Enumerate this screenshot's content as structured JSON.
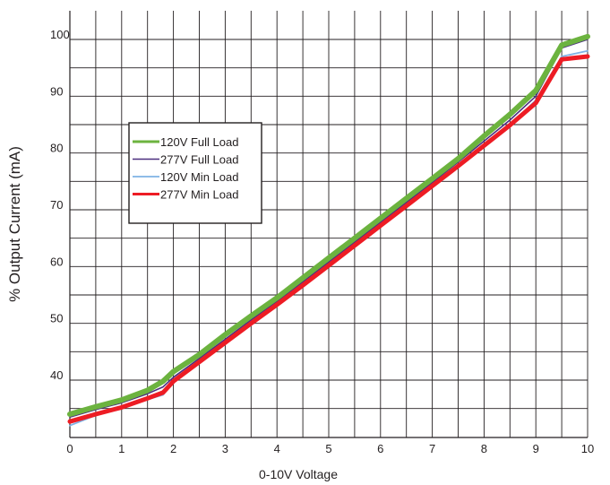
{
  "chart_data": {
    "type": "line",
    "title": "",
    "xlabel": "0-10V Voltage",
    "ylabel": "% Output Current (mA)",
    "xlim": [
      0,
      10
    ],
    "ylim": [
      30,
      105
    ],
    "x_ticks": [
      0,
      1,
      2,
      3,
      4,
      5,
      6,
      7,
      8,
      9,
      10
    ],
    "y_ticks": [
      40,
      50,
      60,
      70,
      80,
      90,
      100
    ],
    "grid": true,
    "legend_position": "upper-left",
    "series": [
      {
        "name": "120V Full Load",
        "color": "#6cb33f",
        "x": [
          0,
          0.5,
          1,
          1.5,
          1.8,
          2,
          2.5,
          3,
          3.5,
          4,
          4.5,
          5,
          5.5,
          6,
          6.5,
          7,
          7.5,
          8,
          8.5,
          9,
          9.5,
          10
        ],
        "y": [
          34.0,
          35.3,
          36.5,
          38.2,
          39.8,
          41.5,
          44.5,
          48.0,
          51.3,
          54.5,
          58.0,
          61.5,
          65.0,
          68.5,
          72.0,
          75.5,
          79.0,
          83.0,
          86.8,
          91.0,
          99.0,
          100.5
        ]
      },
      {
        "name": "277V Full Load",
        "color": "#4b2f7f",
        "x": [
          0,
          0.5,
          1,
          1.5,
          1.8,
          2,
          2.5,
          3,
          3.5,
          4,
          4.5,
          5,
          5.5,
          6,
          6.5,
          7,
          7.5,
          8,
          8.5,
          9,
          9.5,
          10
        ],
        "y": [
          33.5,
          34.8,
          36.0,
          37.6,
          38.8,
          40.5,
          43.8,
          47.2,
          50.6,
          53.9,
          57.3,
          60.8,
          64.3,
          67.8,
          71.3,
          74.8,
          78.4,
          82.1,
          85.8,
          90.0,
          98.5,
          100.0
        ]
      },
      {
        "name": "120V Min Load",
        "color": "#7fb2e5",
        "x": [
          0,
          0.5,
          1,
          1.5,
          1.8,
          2,
          2.5,
          3,
          3.5,
          4,
          4.5,
          5,
          5.5,
          6,
          6.5,
          7,
          7.5,
          8,
          8.5,
          9,
          9.5,
          10
        ],
        "y": [
          32.0,
          33.8,
          35.0,
          36.6,
          37.4,
          39.8,
          43.2,
          46.7,
          50.1,
          53.4,
          56.8,
          60.3,
          63.8,
          67.3,
          70.8,
          74.3,
          77.8,
          81.4,
          85.0,
          89.3,
          97.0,
          98.0
        ]
      },
      {
        "name": "277V Min Load",
        "color": "#ed1c24",
        "x": [
          0,
          0.5,
          1,
          1.5,
          1.8,
          2,
          2.5,
          3,
          3.5,
          4,
          4.5,
          5,
          5.5,
          6,
          6.5,
          7,
          7.5,
          8,
          8.5,
          9,
          9.5,
          10
        ],
        "y": [
          32.7,
          34.0,
          35.2,
          36.8,
          37.8,
          39.8,
          43.2,
          46.6,
          50.0,
          53.3,
          56.7,
          60.2,
          63.7,
          67.2,
          70.7,
          74.2,
          77.7,
          81.3,
          84.9,
          88.8,
          96.5,
          97.0
        ]
      }
    ]
  }
}
